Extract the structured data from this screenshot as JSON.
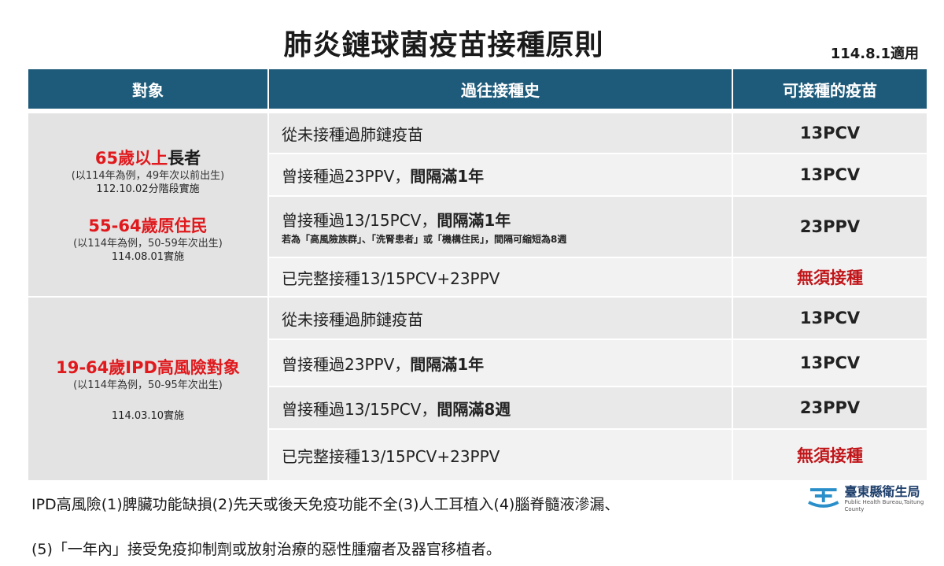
{
  "title": "肺炎鏈球菌疫苗接種原則",
  "effective_date": "114.8.1適用",
  "headers": {
    "target": "對象",
    "history": "過往接種史",
    "vaccine": "可接種的疫苗"
  },
  "group1": {
    "target_a_red": "65歲以上",
    "target_a_black": "長者",
    "target_a_note": "(以114年為例，49年次以前出生)",
    "target_a_date": "112.10.02分階段實施",
    "target_b_red": "55-64歲原住民",
    "target_b_note": "(以114年為例，50-59年次出生)",
    "target_b_date": "114.08.01實施",
    "rows": [
      {
        "history": "從未接種過肺鏈疫苗",
        "history_bold": "",
        "note": "",
        "vaccine": "13PCV",
        "red": false
      },
      {
        "history": "曾接種過23PPV，",
        "history_bold": "間隔滿1年",
        "note": "",
        "vaccine": "13PCV",
        "red": false
      },
      {
        "history": "曾接種過13/15PCV，",
        "history_bold": "間隔滿1年",
        "note": "若為「高風險族群」、「洗腎患者」或「機構住民」，間隔可縮短為8週",
        "vaccine": "23PPV",
        "red": false
      },
      {
        "history": "已完整接種13/15PCV+23PPV",
        "history_bold": "",
        "note": "",
        "vaccine": "無須接種",
        "red": true
      }
    ]
  },
  "group2": {
    "target_red": "19-64歲IPD高風險對象",
    "target_note": "(以114年為例，50-95年次出生)",
    "target_date": "114.03.10實施",
    "rows": [
      {
        "history": "從未接種過肺鏈疫苗",
        "history_bold": "",
        "vaccine": "13PCV",
        "red": false
      },
      {
        "history": "曾接種過23PPV，",
        "history_bold": "間隔滿1年",
        "vaccine": "13PCV",
        "red": false
      },
      {
        "history": "曾接種過13/15PCV，",
        "history_bold": "間隔滿8週",
        "vaccine": "23PPV",
        "red": false
      },
      {
        "history": "已完整接種13/15PCV+23PPV",
        "history_bold": "",
        "vaccine": "無須接種",
        "red": true
      }
    ]
  },
  "footnote_line1": "IPD高風險(1)脾臟功能缺損(2)先天或後天免疫功能不全(3)人工耳植入(4)腦脊髓液滲漏、",
  "footnote_line2": "(5)「一年內」接受免疫抑制劑或放射治療的惡性腫瘤者及器官移植者。",
  "logo": {
    "name": "臺東縣衛生局",
    "subtitle": "Public Health Bureau,Taitung County",
    "color": "#2a8fc9"
  }
}
